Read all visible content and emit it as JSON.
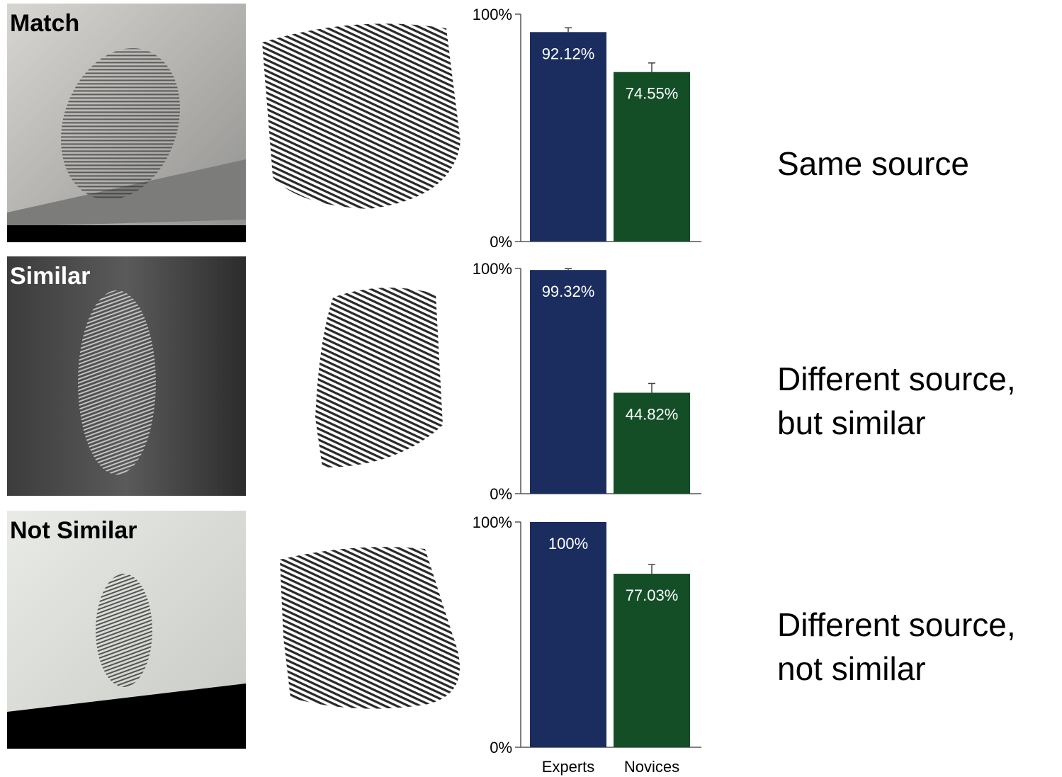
{
  "chart_data": [
    {
      "type": "bar",
      "panel_label": "Match",
      "caption": [
        "Same source"
      ],
      "categories": [
        null,
        null
      ],
      "values": [
        92.12,
        74.55
      ],
      "value_labels": [
        "92.12%",
        "74.55%"
      ],
      "errors": [
        1.9,
        4.0
      ],
      "colors": [
        "#1b2d5f",
        "#134e27"
      ],
      "ylim": [
        0,
        100
      ],
      "yticks": [
        {
          "value": 0,
          "label": "0%"
        },
        {
          "value": 100,
          "label": "100%"
        }
      ]
    },
    {
      "type": "bar",
      "panel_label": "Similar",
      "caption": [
        "Different source,",
        "but similar"
      ],
      "categories": [
        null,
        null
      ],
      "values": [
        99.32,
        44.82
      ],
      "value_labels": [
        "99.32%",
        "44.82%"
      ],
      "errors": [
        0.6,
        4.1
      ],
      "colors": [
        "#1b2d5f",
        "#134e27"
      ],
      "ylim": [
        0,
        100
      ],
      "yticks": [
        {
          "value": 0,
          "label": "0%"
        },
        {
          "value": 100,
          "label": "100%"
        }
      ]
    },
    {
      "type": "bar",
      "panel_label": "Not Similar",
      "caption": [
        "Different source,",
        "not similar"
      ],
      "categories": [
        "Experts",
        "Novices"
      ],
      "values": [
        100,
        77.03
      ],
      "value_labels": [
        "100%",
        "77.03%"
      ],
      "errors": [
        0,
        4.1
      ],
      "colors": [
        "#1b2d5f",
        "#134e27"
      ],
      "ylim": [
        0,
        100
      ],
      "yticks": [
        {
          "value": 0,
          "label": "0%"
        },
        {
          "value": 100,
          "label": "100%"
        }
      ]
    }
  ]
}
